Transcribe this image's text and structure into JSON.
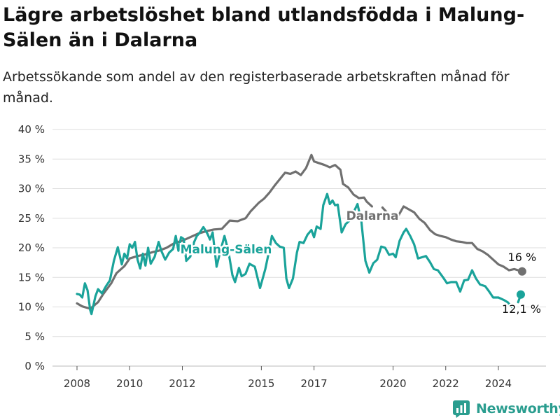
{
  "title": "Lägre arbetslöshet bland utlandsfödda i Malung-Sälen än i Dalarna",
  "subtitle": "Arbetssökande som andel av den registerbaserade arbetskraften månad för månad.",
  "logo_text": "Newsworthy",
  "colors": {
    "malung": "#1aa39a",
    "dalarna": "#707070",
    "grid": "#dddddd",
    "logo": "#2a9d8f"
  },
  "chart_data": {
    "type": "line",
    "ylim": [
      0,
      40
    ],
    "xlim": [
      2007.6,
      2025.5
    ],
    "y_ticks": [
      0,
      5,
      10,
      15,
      20,
      25,
      30,
      35,
      40
    ],
    "y_tick_labels": [
      "0 %",
      "5 %",
      "10 %",
      "15 %",
      "20 %",
      "25 %",
      "30 %",
      "35 %",
      "40 %"
    ],
    "x_ticks": [
      2008,
      2010,
      2012,
      2015,
      2017,
      2020,
      2022,
      2024
    ],
    "x_tick_labels": [
      "2008",
      "2010",
      "2012",
      "2015",
      "2017",
      "2020",
      "2022",
      "2024"
    ],
    "grid": "horizontal",
    "series": [
      {
        "name": "Dalarna",
        "color": "#707070",
        "end_label": "16 %",
        "points": [
          [
            2008.0,
            10.6
          ],
          [
            2008.2,
            10.1
          ],
          [
            2008.5,
            9.7
          ],
          [
            2008.8,
            10.8
          ],
          [
            2009.0,
            12.2
          ],
          [
            2009.3,
            14.0
          ],
          [
            2009.5,
            15.7
          ],
          [
            2009.8,
            16.9
          ],
          [
            2010.0,
            18.2
          ],
          [
            2010.3,
            18.6
          ],
          [
            2010.6,
            18.9
          ],
          [
            2010.9,
            19.3
          ],
          [
            2011.1,
            19.5
          ],
          [
            2011.4,
            20.0
          ],
          [
            2011.7,
            20.8
          ],
          [
            2012.0,
            21.2
          ],
          [
            2012.3,
            21.8
          ],
          [
            2012.6,
            22.4
          ],
          [
            2012.9,
            22.8
          ],
          [
            2013.2,
            23.1
          ],
          [
            2013.5,
            23.2
          ],
          [
            2013.8,
            24.6
          ],
          [
            2014.1,
            24.5
          ],
          [
            2014.4,
            25.0
          ],
          [
            2014.6,
            26.2
          ],
          [
            2014.9,
            27.6
          ],
          [
            2015.1,
            28.3
          ],
          [
            2015.3,
            29.3
          ],
          [
            2015.5,
            30.5
          ],
          [
            2015.7,
            31.6
          ],
          [
            2015.9,
            32.7
          ],
          [
            2016.1,
            32.5
          ],
          [
            2016.3,
            32.9
          ],
          [
            2016.5,
            32.3
          ],
          [
            2016.7,
            33.5
          ],
          [
            2016.9,
            35.7
          ],
          [
            2017.0,
            34.6
          ],
          [
            2017.2,
            34.3
          ],
          [
            2017.4,
            34.0
          ],
          [
            2017.6,
            33.6
          ],
          [
            2017.8,
            34.0
          ],
          [
            2018.0,
            33.2
          ],
          [
            2018.1,
            30.8
          ],
          [
            2018.3,
            30.2
          ],
          [
            2018.5,
            29.0
          ],
          [
            2018.7,
            28.4
          ],
          [
            2018.9,
            28.5
          ],
          [
            2019.0,
            27.8
          ],
          [
            2019.2,
            27.0
          ]
        ]
      },
      {
        "name": "Dalarna",
        "color": "#707070",
        "points": [
          [
            2019.6,
            26.8
          ],
          [
            2020.0,
            24.8
          ],
          [
            2020.2,
            25.4
          ],
          [
            2020.4,
            27.0
          ],
          [
            2020.6,
            26.5
          ],
          [
            2020.8,
            26.0
          ],
          [
            2021.0,
            24.9
          ],
          [
            2021.2,
            24.2
          ],
          [
            2021.4,
            23.0
          ],
          [
            2021.6,
            22.3
          ],
          [
            2021.8,
            22.0
          ],
          [
            2022.0,
            21.8
          ],
          [
            2022.2,
            21.4
          ],
          [
            2022.4,
            21.1
          ],
          [
            2022.6,
            21.0
          ],
          [
            2022.8,
            20.8
          ],
          [
            2023.0,
            20.8
          ],
          [
            2023.2,
            19.8
          ],
          [
            2023.4,
            19.4
          ],
          [
            2023.6,
            18.8
          ],
          [
            2023.8,
            18.0
          ],
          [
            2024.0,
            17.2
          ],
          [
            2024.2,
            16.8
          ],
          [
            2024.4,
            16.2
          ],
          [
            2024.6,
            16.4
          ],
          [
            2024.9,
            16.0
          ]
        ]
      },
      {
        "name": "Malung-Sälen",
        "color": "#1aa39a",
        "end_label": "12,1 %",
        "points": [
          [
            2008.0,
            12.2
          ],
          [
            2008.1,
            12.1
          ],
          [
            2008.2,
            11.6
          ],
          [
            2008.3,
            14.0
          ],
          [
            2008.4,
            12.8
          ],
          [
            2008.5,
            9.5
          ],
          [
            2008.55,
            8.8
          ],
          [
            2008.7,
            11.8
          ],
          [
            2008.8,
            13.0
          ],
          [
            2008.95,
            12.3
          ],
          [
            2009.1,
            13.5
          ],
          [
            2009.25,
            14.5
          ],
          [
            2009.4,
            17.8
          ],
          [
            2009.55,
            20.1
          ],
          [
            2009.7,
            17.2
          ],
          [
            2009.8,
            19.0
          ],
          [
            2009.9,
            18.2
          ],
          [
            2010.0,
            20.6
          ],
          [
            2010.1,
            20.0
          ],
          [
            2010.2,
            21.0
          ],
          [
            2010.3,
            18.0
          ],
          [
            2010.4,
            16.5
          ],
          [
            2010.5,
            19.0
          ],
          [
            2010.6,
            17.0
          ],
          [
            2010.7,
            20.0
          ],
          [
            2010.8,
            17.3
          ],
          [
            2010.95,
            18.5
          ],
          [
            2011.1,
            21.0
          ],
          [
            2011.2,
            19.5
          ],
          [
            2011.35,
            18.0
          ],
          [
            2011.5,
            19.2
          ],
          [
            2011.65,
            19.8
          ],
          [
            2011.75,
            22.0
          ],
          [
            2011.85,
            19.5
          ],
          [
            2011.95,
            21.8
          ],
          [
            2012.05,
            21.5
          ],
          [
            2012.15,
            17.8
          ],
          [
            2012.3,
            18.5
          ],
          [
            2012.45,
            21.0
          ],
          [
            2012.55,
            22.0
          ],
          [
            2012.65,
            22.5
          ],
          [
            2012.8,
            23.5
          ],
          [
            2012.95,
            22.4
          ],
          [
            2013.05,
            21.4
          ],
          [
            2013.15,
            22.6
          ],
          [
            2013.3,
            16.8
          ],
          [
            2013.45,
            19.6
          ],
          [
            2013.6,
            22.0
          ],
          [
            2013.75,
            19.4
          ],
          [
            2013.9,
            15.4
          ],
          [
            2014.0,
            14.2
          ],
          [
            2014.15,
            16.6
          ],
          [
            2014.25,
            15.2
          ],
          [
            2014.4,
            15.6
          ],
          [
            2014.55,
            17.3
          ],
          [
            2014.75,
            16.8
          ],
          [
            2014.95,
            13.2
          ],
          [
            2015.15,
            16.4
          ],
          [
            2015.3,
            19.6
          ],
          [
            2015.4,
            22.0
          ],
          [
            2015.55,
            20.8
          ],
          [
            2015.7,
            20.2
          ],
          [
            2015.85,
            20.0
          ],
          [
            2015.95,
            14.8
          ],
          [
            2016.05,
            13.2
          ],
          [
            2016.2,
            14.8
          ],
          [
            2016.35,
            19.2
          ],
          [
            2016.45,
            21.0
          ],
          [
            2016.6,
            20.8
          ],
          [
            2016.75,
            22.2
          ],
          [
            2016.9,
            23.0
          ],
          [
            2017.0,
            21.8
          ],
          [
            2017.1,
            23.6
          ],
          [
            2017.25,
            23.2
          ],
          [
            2017.35,
            27.2
          ],
          [
            2017.5,
            29.1
          ],
          [
            2017.6,
            27.4
          ],
          [
            2017.7,
            28.0
          ],
          [
            2017.8,
            27.2
          ],
          [
            2017.9,
            27.3
          ],
          [
            2018.05,
            22.6
          ],
          [
            2018.2,
            24.0
          ],
          [
            2018.35,
            24.6
          ],
          [
            2018.5,
            26.0
          ],
          [
            2018.65,
            27.4
          ],
          [
            2018.8,
            24.4
          ],
          [
            2018.95,
            17.8
          ],
          [
            2019.1,
            15.8
          ],
          [
            2019.25,
            17.4
          ],
          [
            2019.4,
            18.0
          ],
          [
            2019.55,
            20.2
          ],
          [
            2019.7,
            20.0
          ],
          [
            2019.85,
            18.8
          ],
          [
            2020.0,
            19.0
          ],
          [
            2020.1,
            18.4
          ],
          [
            2020.25,
            21.2
          ],
          [
            2020.4,
            22.6
          ],
          [
            2020.5,
            23.2
          ],
          [
            2020.65,
            22.0
          ],
          [
            2020.8,
            20.6
          ],
          [
            2020.95,
            18.2
          ],
          [
            2021.1,
            18.4
          ],
          [
            2021.25,
            18.6
          ],
          [
            2021.4,
            17.6
          ],
          [
            2021.55,
            16.4
          ],
          [
            2021.7,
            16.2
          ],
          [
            2021.9,
            15.0
          ],
          [
            2022.05,
            14.0
          ],
          [
            2022.2,
            14.2
          ],
          [
            2022.4,
            14.2
          ],
          [
            2022.55,
            12.6
          ],
          [
            2022.7,
            14.5
          ],
          [
            2022.85,
            14.6
          ],
          [
            2023.0,
            16.2
          ],
          [
            2023.15,
            14.8
          ],
          [
            2023.3,
            13.8
          ],
          [
            2023.5,
            13.5
          ],
          [
            2023.65,
            12.6
          ],
          [
            2023.8,
            11.6
          ],
          [
            2024.0,
            11.6
          ],
          [
            2024.2,
            11.2
          ],
          [
            2024.35,
            10.8
          ],
          [
            2024.5,
            10.0
          ]
        ]
      },
      {
        "name": "Malung-Sälen",
        "color": "#1aa39a",
        "points": [
          [
            2024.75,
            10.8
          ],
          [
            2024.85,
            12.1
          ]
        ]
      }
    ]
  }
}
